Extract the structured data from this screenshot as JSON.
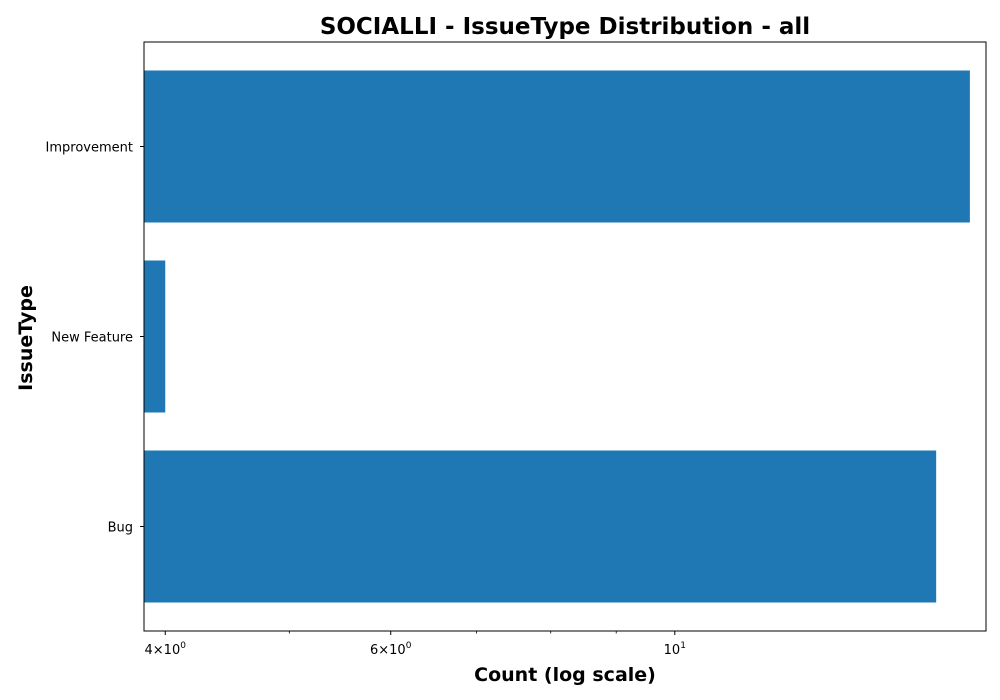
{
  "chart_data": {
    "type": "bar",
    "orientation": "horizontal",
    "title": "SOCIALLI - IssueType Distribution - all",
    "xlabel": "Count (log scale)",
    "ylabel": "IssueType",
    "x_scale": "log",
    "xlim": [
      3.85,
      17.5
    ],
    "categories": [
      "Improvement",
      "New Feature",
      "Bug"
    ],
    "values": [
      17,
      4,
      16
    ],
    "bar_color": "#1f77b4",
    "grid": false,
    "legend": "none",
    "x_major_ticks": [
      {
        "value": 4,
        "base": "4",
        "exp": "0"
      },
      {
        "value": 6,
        "base": "6",
        "exp": "0"
      },
      {
        "value": 10,
        "base": "10",
        "exp": "1"
      }
    ],
    "x_minor_ticks": [
      5,
      7,
      8,
      9
    ]
  }
}
